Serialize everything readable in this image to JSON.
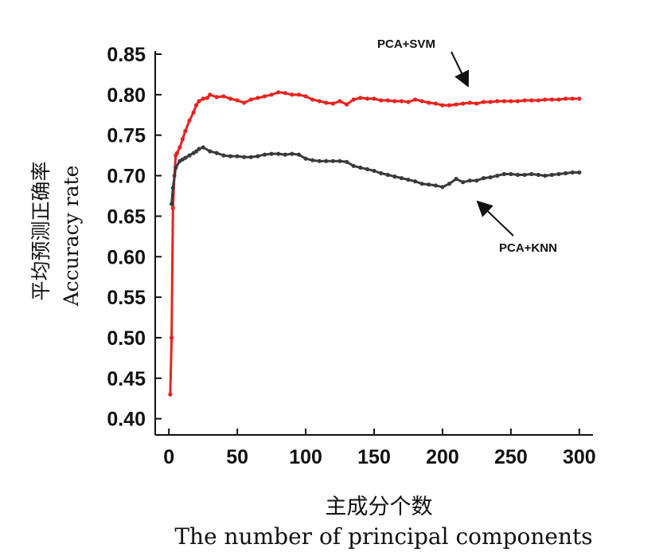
{
  "chart_data": {
    "type": "line",
    "xlabel_cn": "主成分个数",
    "xlabel_en": "The number of principal components",
    "ylabel_cn": "平均预测正确率",
    "ylabel_en": "Accuracy rate",
    "xlim": [
      -10,
      310
    ],
    "ylim": [
      0.38,
      0.85
    ],
    "x_ticks": [
      0,
      50,
      100,
      150,
      200,
      250,
      300
    ],
    "y_ticks": [
      0.4,
      0.45,
      0.5,
      0.55,
      0.6,
      0.65,
      0.7,
      0.75,
      0.8,
      0.85
    ],
    "x_tick_labels": [
      "0",
      "50",
      "100",
      "150",
      "200",
      "250",
      "300"
    ],
    "y_tick_labels": [
      "0.40",
      "0.45",
      "0.50",
      "0.55",
      "0.60",
      "0.65",
      "0.70",
      "0.75",
      "0.80",
      "0.85"
    ],
    "grid": false,
    "series": [
      {
        "name": "PCA+SVM",
        "color": "#e8231f",
        "x": [
          1,
          2,
          3,
          4,
          5,
          6,
          8,
          10,
          12,
          15,
          18,
          20,
          22,
          25,
          28,
          30,
          35,
          40,
          45,
          50,
          55,
          60,
          65,
          70,
          75,
          80,
          85,
          90,
          95,
          100,
          105,
          110,
          115,
          120,
          125,
          130,
          135,
          140,
          145,
          150,
          155,
          160,
          165,
          170,
          175,
          180,
          185,
          190,
          195,
          200,
          205,
          210,
          215,
          220,
          225,
          230,
          235,
          240,
          245,
          250,
          255,
          260,
          265,
          270,
          275,
          280,
          285,
          290,
          295,
          300
        ],
        "y": [
          0.43,
          0.5,
          0.66,
          0.7,
          0.725,
          0.728,
          0.735,
          0.745,
          0.755,
          0.768,
          0.778,
          0.787,
          0.792,
          0.795,
          0.796,
          0.8,
          0.797,
          0.798,
          0.795,
          0.793,
          0.79,
          0.794,
          0.796,
          0.798,
          0.8,
          0.803,
          0.802,
          0.8,
          0.8,
          0.798,
          0.794,
          0.792,
          0.79,
          0.789,
          0.792,
          0.788,
          0.794,
          0.796,
          0.795,
          0.795,
          0.793,
          0.793,
          0.792,
          0.792,
          0.791,
          0.794,
          0.792,
          0.79,
          0.789,
          0.787,
          0.787,
          0.788,
          0.789,
          0.79,
          0.789,
          0.791,
          0.791,
          0.792,
          0.792,
          0.792,
          0.792,
          0.793,
          0.793,
          0.793,
          0.794,
          0.794,
          0.794,
          0.795,
          0.795,
          0.795
        ]
      },
      {
        "name": "PCA+KNN",
        "color": "#3a3a3a",
        "x": [
          2,
          3,
          5,
          8,
          10,
          12,
          15,
          18,
          20,
          22,
          25,
          30,
          35,
          40,
          45,
          50,
          55,
          60,
          65,
          70,
          75,
          80,
          85,
          90,
          95,
          100,
          105,
          110,
          115,
          120,
          125,
          130,
          135,
          140,
          145,
          150,
          155,
          160,
          165,
          170,
          175,
          180,
          185,
          190,
          195,
          200,
          205,
          210,
          215,
          220,
          225,
          230,
          235,
          240,
          245,
          250,
          255,
          260,
          265,
          270,
          275,
          280,
          285,
          290,
          295,
          300
        ],
        "y": [
          0.665,
          0.685,
          0.71,
          0.718,
          0.72,
          0.722,
          0.725,
          0.728,
          0.73,
          0.733,
          0.735,
          0.73,
          0.728,
          0.725,
          0.724,
          0.724,
          0.723,
          0.723,
          0.724,
          0.726,
          0.727,
          0.727,
          0.726,
          0.727,
          0.726,
          0.721,
          0.719,
          0.718,
          0.718,
          0.718,
          0.718,
          0.717,
          0.712,
          0.71,
          0.708,
          0.706,
          0.703,
          0.701,
          0.699,
          0.697,
          0.695,
          0.693,
          0.69,
          0.689,
          0.688,
          0.686,
          0.69,
          0.696,
          0.692,
          0.694,
          0.694,
          0.697,
          0.698,
          0.7,
          0.702,
          0.702,
          0.701,
          0.701,
          0.702,
          0.701,
          0.7,
          0.701,
          0.702,
          0.703,
          0.704,
          0.704
        ]
      }
    ],
    "annotations": [
      {
        "text": "PCA+SVM",
        "points_to_series": "PCA+SVM"
      },
      {
        "text": "PCA+KNN",
        "points_to_series": "PCA+KNN"
      }
    ]
  }
}
